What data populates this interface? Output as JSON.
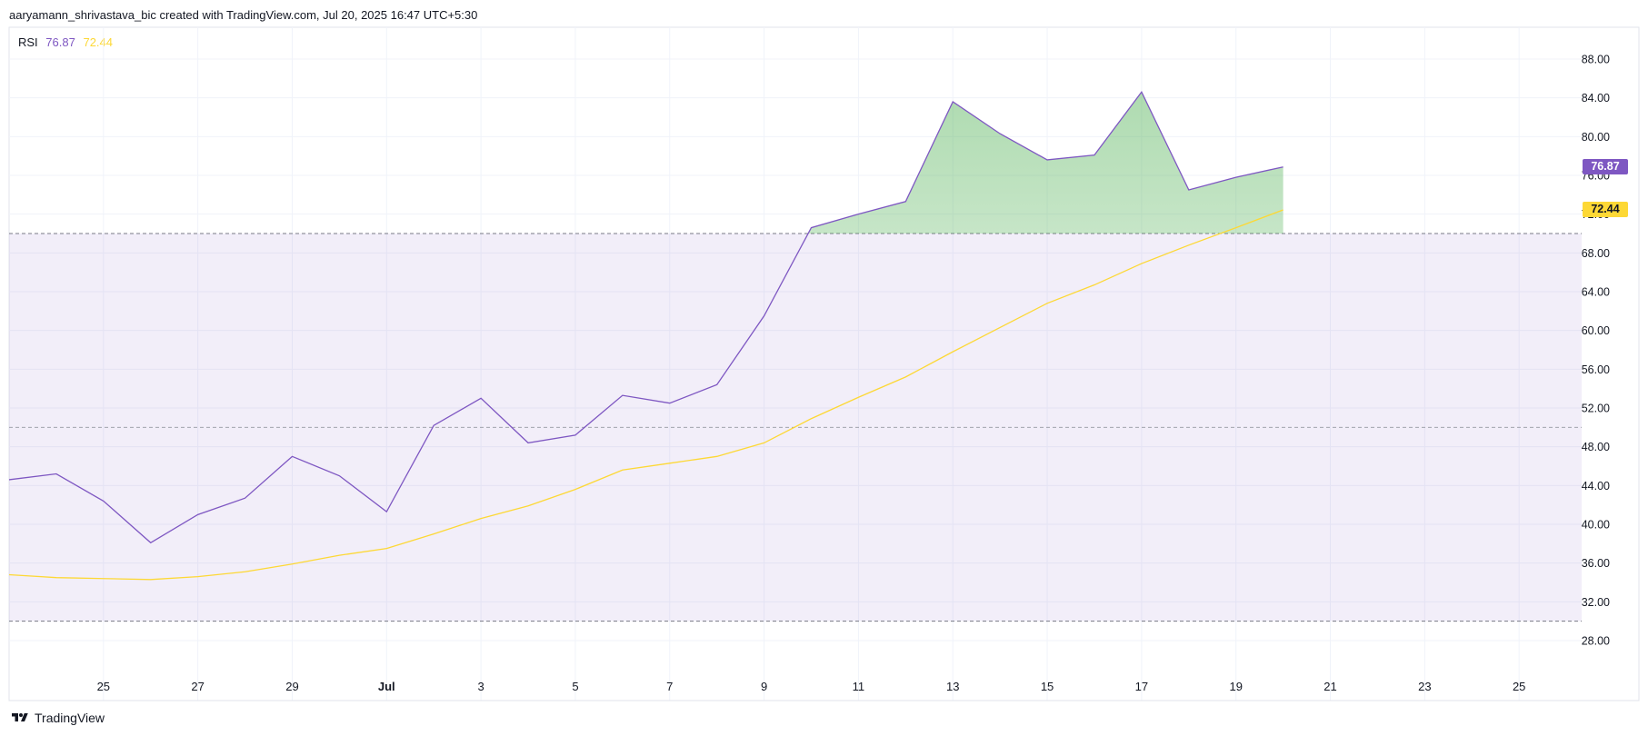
{
  "header": {
    "text": "aaryamann_shrivastava_bic created with TradingView.com, Jul 20, 2025 16:47 UTC+5:30"
  },
  "legend": {
    "name": "RSI",
    "rsi_value": "76.87",
    "ma_value": "72.44"
  },
  "footer": {
    "brand": "TradingView"
  },
  "colors": {
    "rsi": "#7e57c2",
    "ma": "#fdd835",
    "band": "#7e57c2",
    "overbought_fill": "#4caf50"
  },
  "chart_data": {
    "type": "line",
    "ylim": [
      25,
      90
    ],
    "yticks": [
      28,
      32,
      36,
      40,
      44,
      48,
      52,
      56,
      60,
      64,
      68,
      72,
      76,
      80,
      84,
      88
    ],
    "ytick_labels": [
      "28.00",
      "32.00",
      "36.00",
      "40.00",
      "44.00",
      "48.00",
      "52.00",
      "56.00",
      "60.00",
      "64.00",
      "68.00",
      "72.00",
      "76.00",
      "80.00",
      "84.00",
      "88.00"
    ],
    "xlim": [
      "2025-06-23",
      "2025-07-27"
    ],
    "xticks": [
      {
        "date": "2025-06-25",
        "label": "25"
      },
      {
        "date": "2025-06-27",
        "label": "27"
      },
      {
        "date": "2025-06-29",
        "label": "29"
      },
      {
        "date": "2025-07-01",
        "label": "Jul"
      },
      {
        "date": "2025-07-03",
        "label": "3"
      },
      {
        "date": "2025-07-05",
        "label": "5"
      },
      {
        "date": "2025-07-07",
        "label": "7"
      },
      {
        "date": "2025-07-09",
        "label": "9"
      },
      {
        "date": "2025-07-11",
        "label": "11"
      },
      {
        "date": "2025-07-13",
        "label": "13"
      },
      {
        "date": "2025-07-15",
        "label": "15"
      },
      {
        "date": "2025-07-17",
        "label": "17"
      },
      {
        "date": "2025-07-19",
        "label": "19"
      },
      {
        "date": "2025-07-21",
        "label": "21"
      },
      {
        "date": "2025-07-23",
        "label": "23"
      },
      {
        "date": "2025-07-25",
        "label": "25"
      }
    ],
    "bands": {
      "upper": 70,
      "middle": 50,
      "lower": 30
    },
    "series": [
      {
        "x": [
          "2025-06-23",
          "2025-06-24",
          "2025-06-25",
          "2025-06-26",
          "2025-06-27",
          "2025-06-28",
          "2025-06-29",
          "2025-06-30",
          "2025-07-01",
          "2025-07-02",
          "2025-07-03",
          "2025-07-04",
          "2025-07-05",
          "2025-07-06",
          "2025-07-07",
          "2025-07-08",
          "2025-07-09",
          "2025-07-10",
          "2025-07-11",
          "2025-07-12",
          "2025-07-13",
          "2025-07-14",
          "2025-07-15",
          "2025-07-16",
          "2025-07-17",
          "2025-07-18",
          "2025-07-19",
          "2025-07-20"
        ],
        "values": [
          44.6,
          45.2,
          42.4,
          38.1,
          41.0,
          42.7,
          47.0,
          45.0,
          41.3,
          50.2,
          53.0,
          48.4,
          49.2,
          53.3,
          52.5,
          54.4,
          61.5,
          70.6,
          72.0,
          73.3,
          83.6,
          80.3,
          77.6,
          78.1,
          84.6,
          74.5,
          75.8,
          76.87
        ]
      },
      {
        "x": [
          "2025-06-23",
          "2025-06-24",
          "2025-06-25",
          "2025-06-26",
          "2025-06-27",
          "2025-06-28",
          "2025-06-29",
          "2025-06-30",
          "2025-07-01",
          "2025-07-02",
          "2025-07-03",
          "2025-07-04",
          "2025-07-05",
          "2025-07-06",
          "2025-07-07",
          "2025-07-08",
          "2025-07-09",
          "2025-07-10",
          "2025-07-11",
          "2025-07-12",
          "2025-07-13",
          "2025-07-14",
          "2025-07-15",
          "2025-07-16",
          "2025-07-17",
          "2025-07-18",
          "2025-07-19",
          "2025-07-20"
        ],
        "values": [
          34.8,
          34.5,
          34.4,
          34.3,
          34.6,
          35.1,
          35.9,
          36.8,
          37.5,
          39.0,
          40.6,
          41.9,
          43.6,
          45.6,
          46.3,
          47.0,
          48.4,
          50.9,
          53.1,
          55.2,
          57.8,
          60.3,
          62.8,
          64.7,
          66.9,
          68.8,
          70.6,
          72.44
        ]
      }
    ],
    "last_values": {
      "rsi": "76.87",
      "ma": "72.44"
    }
  }
}
